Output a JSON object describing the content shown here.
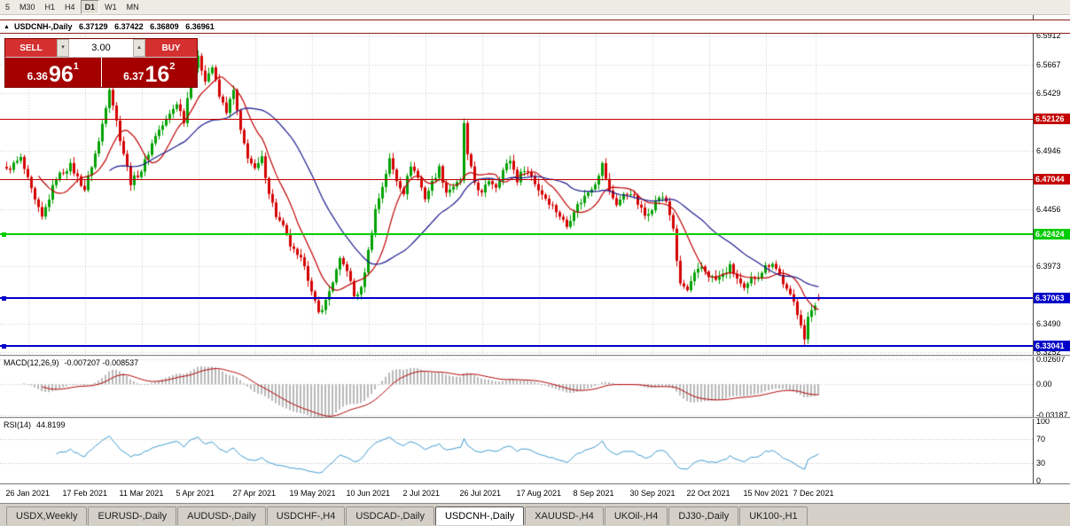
{
  "toolbar": {
    "timeframes": [
      "5",
      "M30",
      "H1",
      "H4",
      "D1",
      "W1",
      "MN"
    ],
    "active": "D1"
  },
  "chart": {
    "title": "USDCNH-,Daily",
    "ohlc": {
      "open": "6.37129",
      "high": "6.37422",
      "low": "6.36809",
      "close": "6.36961"
    },
    "trade_panel": {
      "sell_label": "SELL",
      "buy_label": "BUY",
      "volume": "3.00",
      "sell_price": {
        "small": "6.36",
        "big": "96",
        "sup": "1"
      },
      "buy_price": {
        "small": "6.37",
        "big": "16",
        "sup": "2"
      }
    },
    "levels": [
      {
        "price": 6.52126,
        "label": "6.52126",
        "color": "#c40000",
        "width": 1,
        "handles": false
      },
      {
        "price": 6.47044,
        "label": "6.47044",
        "color": "#c40000",
        "width": 1,
        "handles": false
      },
      {
        "price": 6.42424,
        "label": "6.42424",
        "color": "#00cc00",
        "width": 2,
        "handles": true
      },
      {
        "price": 6.37063,
        "label": "6.37063",
        "color": "#0000c8",
        "width": 2,
        "handles": true
      },
      {
        "price": 6.33041,
        "label": "6.33041",
        "color": "#0000c8",
        "width": 2,
        "handles": true
      }
    ],
    "y_axis_labels": [
      "6.5912",
      "6.5667",
      "6.5429",
      "6.4946",
      "6.4456",
      "6.3973",
      "6.3490",
      "6.3252"
    ]
  },
  "macd": {
    "label": "MACD(12,26,9)",
    "values": "-0.007207 -0.008537",
    "scale": [
      {
        "label": "0.02607",
        "value": 0.02607
      },
      {
        "label": "0.00",
        "value": 0
      },
      {
        "label": "-0.03187",
        "value": -0.03187
      }
    ]
  },
  "rsi": {
    "label": "RSI(14)",
    "value": "44.8199",
    "scale": [
      {
        "label": "100",
        "value": 100
      },
      {
        "label": "70",
        "value": 70
      },
      {
        "label": "30",
        "value": 30
      },
      {
        "label": "0",
        "value": 0
      }
    ]
  },
  "tabs": [
    "USDX,Weekly",
    "EURUSD-,Daily",
    "AUDUSD-,Daily",
    "USDCHF-,H4",
    "USDCAD-,Daily",
    "USDCNH-,Daily",
    "XAUUSD-,H4",
    "UKOil-,H4",
    "DJ30-,Daily",
    "UK100-,H1"
  ],
  "active_tab": "USDCNH-,Daily",
  "chart_data": {
    "type": "candlestick",
    "symbol": "USDCNH-",
    "timeframe": "Daily",
    "candles": 230,
    "y_range": [
      6.323,
      6.593
    ],
    "ohlc_current": {
      "open": 6.37129,
      "high": 6.37422,
      "low": 6.36809,
      "close": 6.36961
    },
    "horizontal_levels": [
      6.52126,
      6.47044,
      6.42424,
      6.37063,
      6.33041
    ],
    "dates": [
      "26 Jan 2021",
      "17 Feb 2021",
      "11 Mar 2021",
      "5 Apr 2021",
      "27 Apr 2021",
      "19 May 2021",
      "10 Jun 2021",
      "2 Jul 2021",
      "26 Jul 2021",
      "17 Aug 2021",
      "8 Sep 2021",
      "30 Sep 2021",
      "22 Oct 2021",
      "15 Nov 2021",
      "7 Dec 2021"
    ],
    "date_anchor_indices": [
      6,
      22,
      38,
      54,
      70,
      86,
      102,
      118,
      134,
      150,
      166,
      182,
      198,
      214,
      228
    ],
    "price_anchors": [
      [
        0,
        6.478
      ],
      [
        4,
        6.488
      ],
      [
        8,
        6.452
      ],
      [
        10,
        6.438
      ],
      [
        14,
        6.472
      ],
      [
        18,
        6.482
      ],
      [
        22,
        6.462
      ],
      [
        26,
        6.502
      ],
      [
        29,
        6.548
      ],
      [
        32,
        6.505
      ],
      [
        35,
        6.468
      ],
      [
        38,
        6.478
      ],
      [
        42,
        6.508
      ],
      [
        45,
        6.52
      ],
      [
        48,
        6.535
      ],
      [
        50,
        6.52
      ],
      [
        52,
        6.558
      ],
      [
        54,
        6.572
      ],
      [
        56,
        6.555
      ],
      [
        58,
        6.565
      ],
      [
        60,
        6.54
      ],
      [
        62,
        6.528
      ],
      [
        64,
        6.545
      ],
      [
        66,
        6.51
      ],
      [
        68,
        6.49
      ],
      [
        70,
        6.478
      ],
      [
        72,
        6.488
      ],
      [
        74,
        6.46
      ],
      [
        76,
        6.44
      ],
      [
        78,
        6.43
      ],
      [
        80,
        6.415
      ],
      [
        82,
        6.405
      ],
      [
        84,
        6.4
      ],
      [
        86,
        6.375
      ],
      [
        88,
        6.358
      ],
      [
        90,
        6.368
      ],
      [
        92,
        6.385
      ],
      [
        94,
        6.402
      ],
      [
        96,
        6.395
      ],
      [
        98,
        6.372
      ],
      [
        100,
        6.378
      ],
      [
        102,
        6.41
      ],
      [
        104,
        6.445
      ],
      [
        106,
        6.465
      ],
      [
        108,
        6.487
      ],
      [
        110,
        6.47
      ],
      [
        112,
        6.46
      ],
      [
        114,
        6.483
      ],
      [
        116,
        6.472
      ],
      [
        118,
        6.455
      ],
      [
        120,
        6.468
      ],
      [
        122,
        6.48
      ],
      [
        124,
        6.46
      ],
      [
        126,
        6.465
      ],
      [
        128,
        6.468
      ],
      [
        129,
        6.518
      ],
      [
        130,
        6.49
      ],
      [
        132,
        6.468
      ],
      [
        134,
        6.458
      ],
      [
        136,
        6.47
      ],
      [
        138,
        6.465
      ],
      [
        140,
        6.478
      ],
      [
        142,
        6.487
      ],
      [
        144,
        6.47
      ],
      [
        146,
        6.48
      ],
      [
        148,
        6.473
      ],
      [
        150,
        6.462
      ],
      [
        152,
        6.455
      ],
      [
        154,
        6.448
      ],
      [
        156,
        6.44
      ],
      [
        158,
        6.431
      ],
      [
        160,
        6.445
      ],
      [
        162,
        6.452
      ],
      [
        164,
        6.46
      ],
      [
        166,
        6.468
      ],
      [
        168,
        6.483
      ],
      [
        170,
        6.46
      ],
      [
        172,
        6.45
      ],
      [
        174,
        6.457
      ],
      [
        176,
        6.46
      ],
      [
        178,
        6.45
      ],
      [
        180,
        6.44
      ],
      [
        182,
        6.447
      ],
      [
        184,
        6.456
      ],
      [
        186,
        6.452
      ],
      [
        188,
        6.43
      ],
      [
        189,
        6.4
      ],
      [
        190,
        6.383
      ],
      [
        192,
        6.377
      ],
      [
        194,
        6.39
      ],
      [
        196,
        6.397
      ],
      [
        198,
        6.39
      ],
      [
        200,
        6.386
      ],
      [
        202,
        6.39
      ],
      [
        204,
        6.397
      ],
      [
        206,
        6.387
      ],
      [
        208,
        6.377
      ],
      [
        210,
        6.386
      ],
      [
        212,
        6.39
      ],
      [
        214,
        6.397
      ],
      [
        216,
        6.401
      ],
      [
        218,
        6.39
      ],
      [
        220,
        6.377
      ],
      [
        222,
        6.367
      ],
      [
        224,
        6.35
      ],
      [
        225,
        6.336
      ],
      [
        226,
        6.353
      ],
      [
        227,
        6.361
      ],
      [
        228,
        6.366
      ],
      [
        229,
        6.3696
      ]
    ],
    "indicators": {
      "ma_fast": {
        "period": 10,
        "color": "#c00000"
      },
      "ma_slow": {
        "period": 30,
        "color": "#1b1b8e"
      },
      "macd": {
        "fast": 12,
        "slow": 26,
        "signal": 9,
        "current_main": -0.007207,
        "current_signal": -0.008537,
        "range": [
          -0.0335,
          0.0285
        ]
      },
      "rsi": {
        "period": 14,
        "current": 44.8199,
        "levels": [
          70,
          30
        ]
      }
    },
    "colors": {
      "up": "#00a000",
      "down": "#d40000",
      "macd_hist": "#b8b8b8",
      "macd_signal": "#b00000",
      "rsi_line": "#3b97cf",
      "grid": "#c9c9c9"
    }
  }
}
